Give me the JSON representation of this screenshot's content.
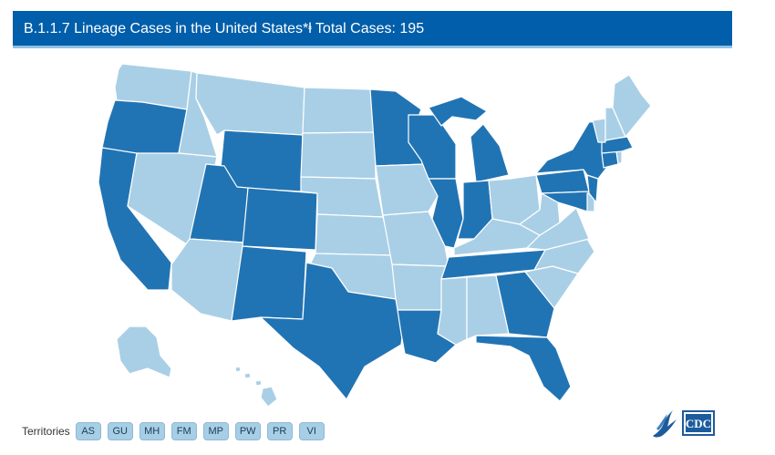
{
  "title": "B.1.1.7 Lineage Cases in the United States*ⱡ Total Cases: 195",
  "colors": {
    "has_cases": "#2174b4",
    "no_cases": "#a9cfe6",
    "title_bg": "#005eaa",
    "border": "#ffffff"
  },
  "states_with_cases": [
    "OR",
    "CA",
    "UT",
    "WY",
    "CO",
    "NM",
    "TX",
    "MN",
    "WI",
    "IL",
    "LA",
    "MI",
    "IN",
    "TN",
    "GA",
    "FL",
    "MD",
    "PA",
    "NJ",
    "NY",
    "CT",
    "MA"
  ],
  "states_without_cases": [
    "WA",
    "ID",
    "MT",
    "NV",
    "AZ",
    "ND",
    "SD",
    "NE",
    "KS",
    "OK",
    "IA",
    "MO",
    "AR",
    "MS",
    "AL",
    "KY",
    "OH",
    "WV",
    "VA",
    "NC",
    "SC",
    "DE",
    "VT",
    "NH",
    "ME",
    "RI",
    "AK",
    "HI"
  ],
  "territories_label": "Territories",
  "territories": [
    "AS",
    "GU",
    "MH",
    "FM",
    "MP",
    "PW",
    "PR",
    "VI"
  ],
  "logos": [
    "hhs-eagle-logo",
    "cdc-logo"
  ]
}
